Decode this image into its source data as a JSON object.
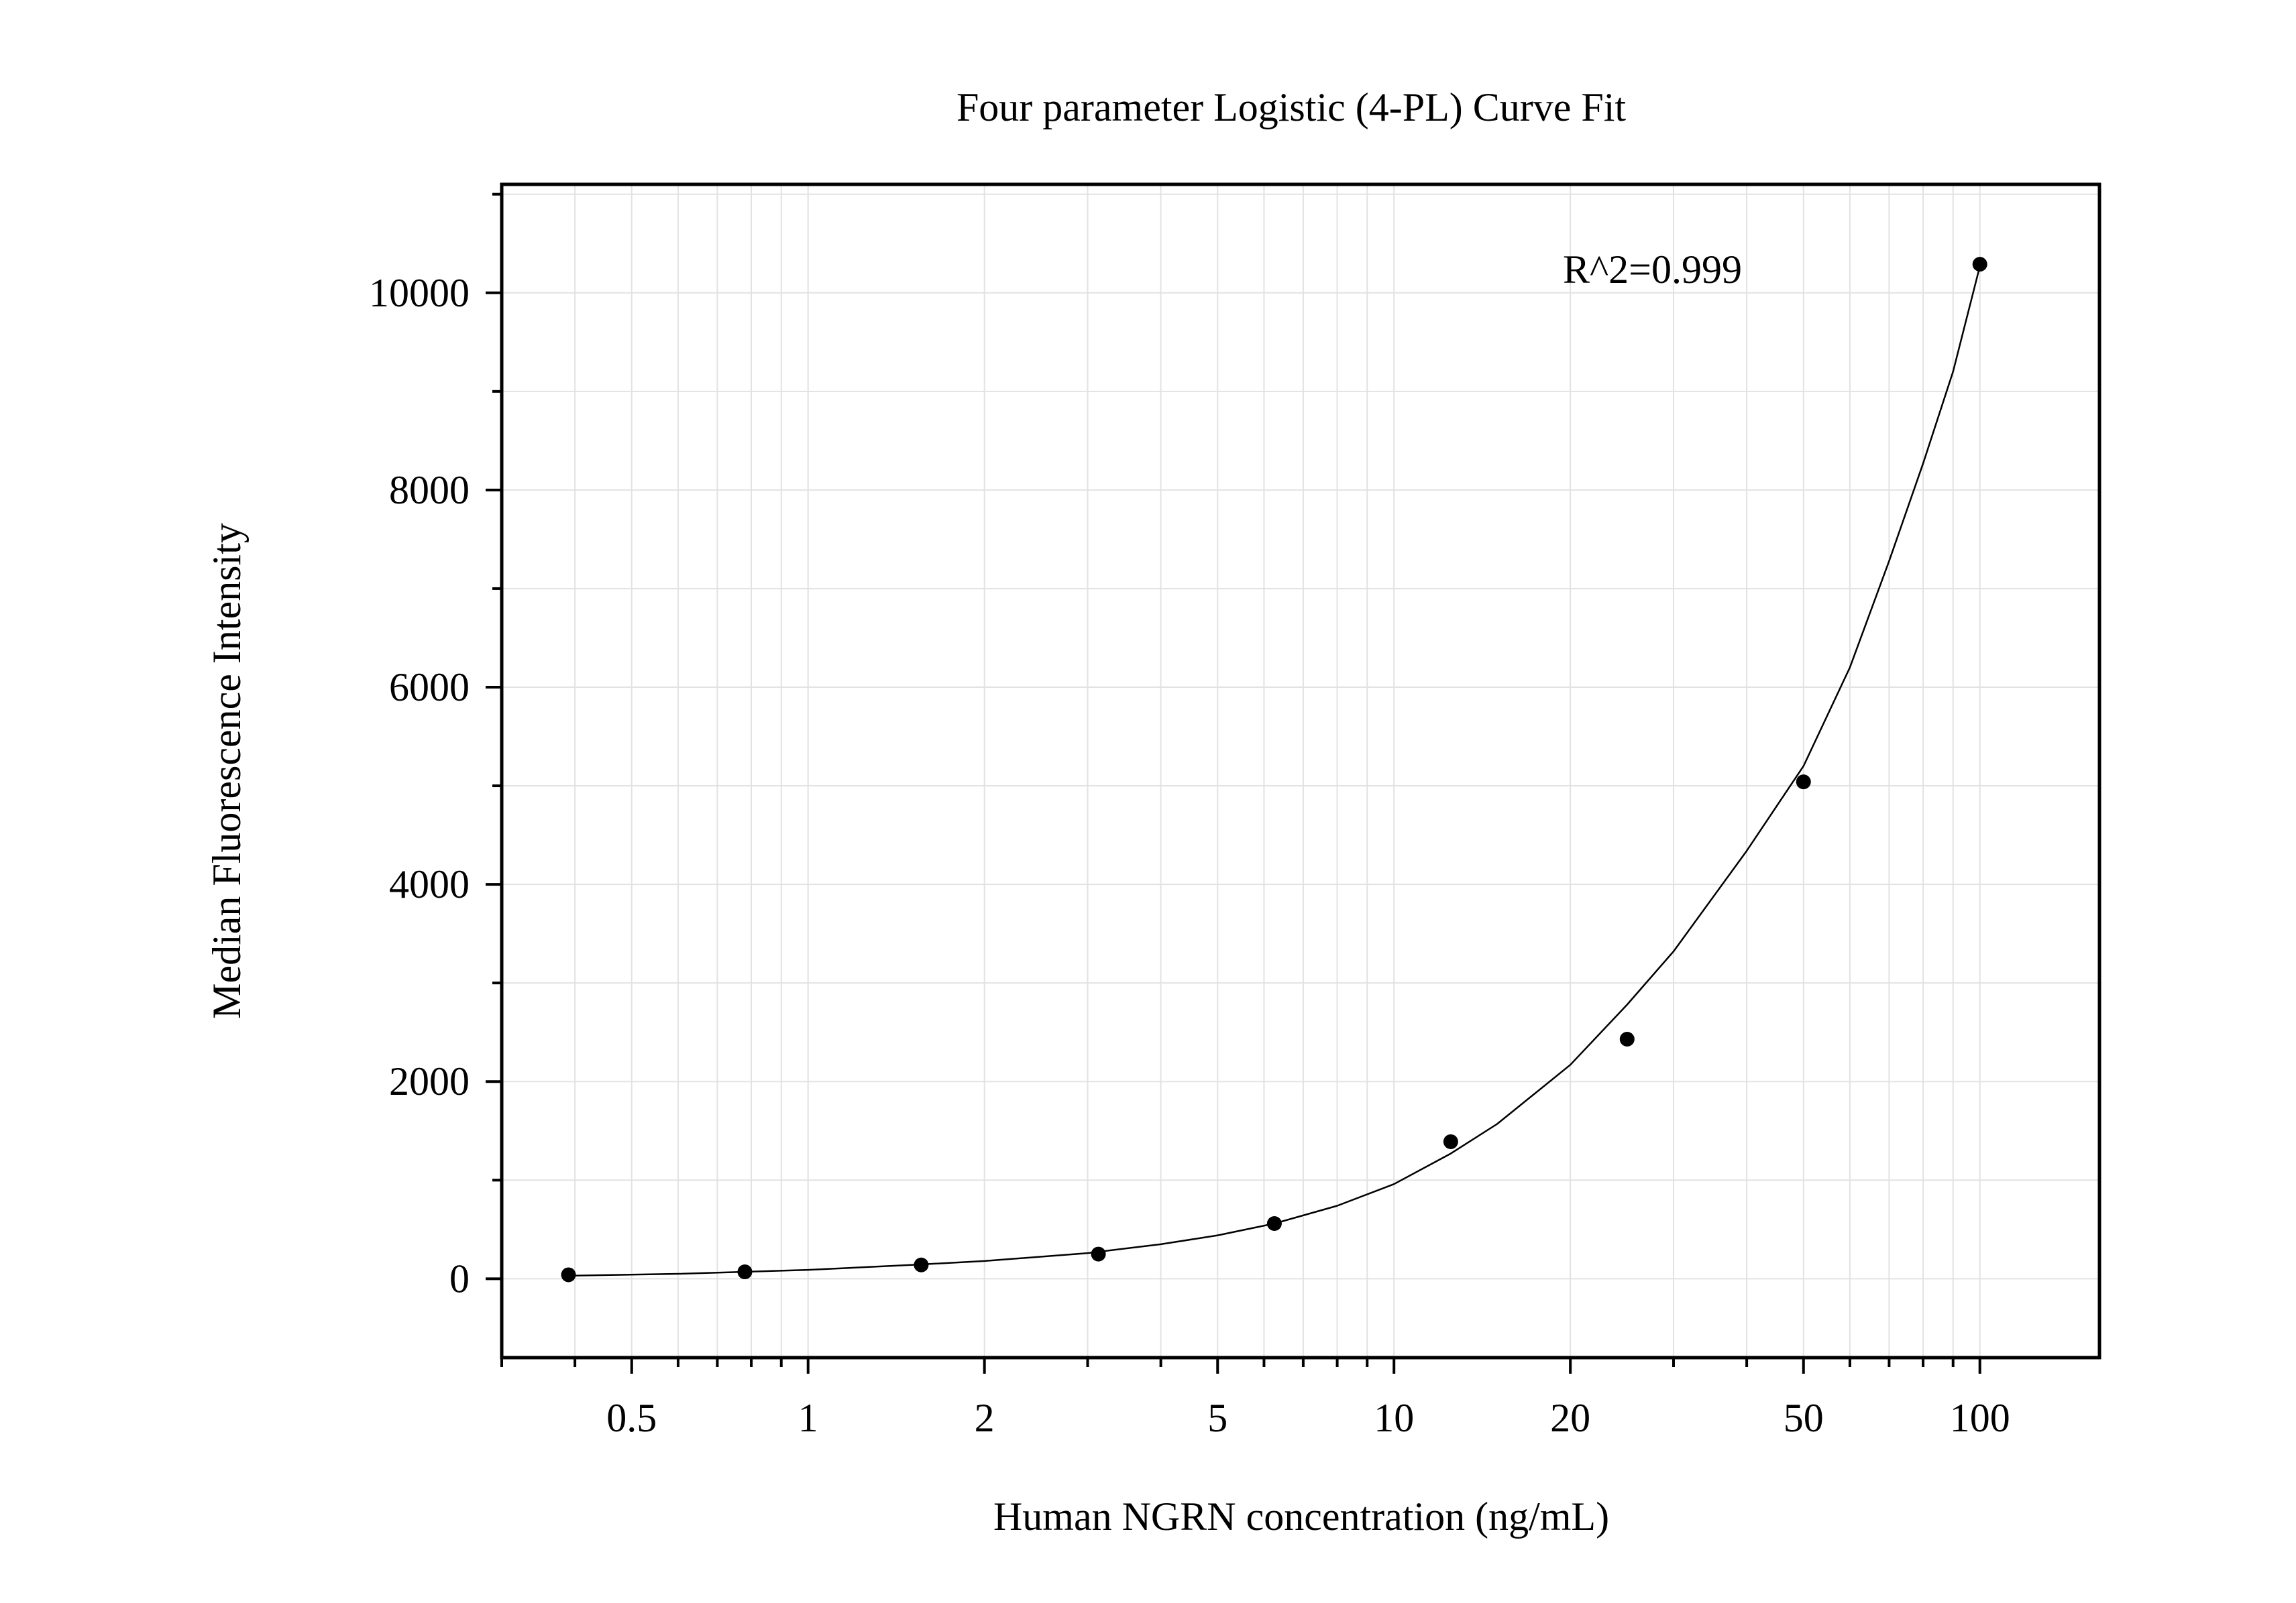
{
  "chart_data": {
    "type": "scatter",
    "title": "Four parameter Logistic (4-PL) Curve Fit",
    "xlabel": "Human NGRN concentration (ng/mL)",
    "ylabel": "Median Fluorescence Intensity",
    "x_scale": "log",
    "xlim": [
      0.3,
      160
    ],
    "ylim": [
      -800,
      11100
    ],
    "x_ticks": [
      {
        "value": 0.5,
        "label": "0.5"
      },
      {
        "value": 1,
        "label": "1"
      },
      {
        "value": 2,
        "label": "2"
      },
      {
        "value": 5,
        "label": "5"
      },
      {
        "value": 10,
        "label": "10"
      },
      {
        "value": 20,
        "label": "20"
      },
      {
        "value": 50,
        "label": "50"
      },
      {
        "value": 100,
        "label": "100"
      }
    ],
    "y_ticks": [
      {
        "value": 0,
        "label": "0"
      },
      {
        "value": 2000,
        "label": "2000"
      },
      {
        "value": 4000,
        "label": "4000"
      },
      {
        "value": 6000,
        "label": "6000"
      },
      {
        "value": 8000,
        "label": "8000"
      },
      {
        "value": 10000,
        "label": "10000"
      }
    ],
    "grid": true,
    "annotation": "R^2=0.999",
    "series": [
      {
        "kind": "points",
        "color": "#000000",
        "x": [
          0.39,
          0.78,
          1.56,
          3.13,
          6.25,
          12.5,
          25,
          50,
          100
        ],
        "y": [
          40,
          70,
          140,
          250,
          560,
          1390,
          2430,
          5040,
          10290
        ]
      },
      {
        "kind": "fit-curve",
        "color": "#000000",
        "x": [
          0.39,
          0.6,
          1,
          1.5,
          2,
          3,
          4,
          5,
          6.25,
          8,
          10,
          12.5,
          15,
          20,
          25,
          30,
          40,
          50,
          60,
          70,
          80,
          90,
          100
        ],
        "y": [
          30,
          50,
          90,
          140,
          180,
          260,
          350,
          440,
          560,
          740,
          960,
          1270,
          1570,
          2170,
          2780,
          3320,
          4340,
          5200,
          6200,
          7280,
          8270,
          9200,
          10270
        ]
      }
    ]
  }
}
